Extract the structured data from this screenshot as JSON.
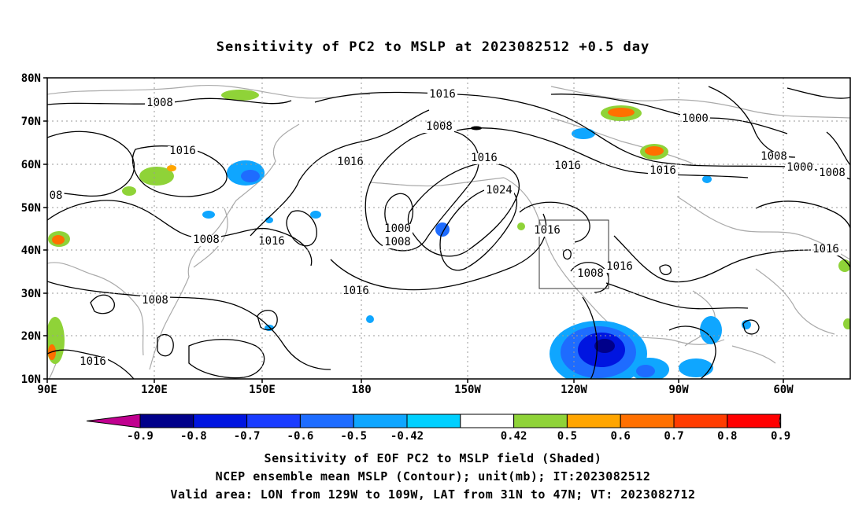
{
  "title": "Sensitivity of PC2 to MSLP at 2023082512 +0.5 day",
  "lat_labels": [
    "80N",
    "70N",
    "60N",
    "50N",
    "40N",
    "30N",
    "20N",
    "10N"
  ],
  "lon_labels": [
    "90E",
    "120E",
    "150E",
    "180",
    "150W",
    "120W",
    "90W",
    "60W"
  ],
  "contour_labels": [
    {
      "text": "1008"
    },
    {
      "text": "1016"
    },
    {
      "text": "08"
    },
    {
      "text": "1008"
    },
    {
      "text": "1016"
    },
    {
      "text": "1016"
    },
    {
      "text": "1008"
    },
    {
      "text": "1016"
    },
    {
      "text": "1000"
    },
    {
      "text": "1008"
    },
    {
      "text": "1016"
    },
    {
      "text": "1008"
    },
    {
      "text": "1016"
    },
    {
      "text": "1016"
    },
    {
      "text": "1024"
    },
    {
      "text": "1016"
    },
    {
      "text": "1008"
    },
    {
      "text": "1016"
    },
    {
      "text": "1000"
    },
    {
      "text": "1016"
    },
    {
      "text": "1008"
    },
    {
      "text": "1000"
    },
    {
      "text": "1008"
    },
    {
      "text": "1016"
    },
    {
      "text": "1016"
    }
  ],
  "colorbar": {
    "labels": [
      "-0.9",
      "-0.8",
      "-0.7",
      "-0.6",
      "-0.5",
      "-0.42",
      "0.42",
      "0.5",
      "0.6",
      "0.7",
      "0.8",
      "0.9"
    ],
    "colors": [
      "#00008a",
      "#0015e0",
      "#1a3cff",
      "#1e6cff",
      "#0fa6ff",
      "#00d0ff",
      "#ffffff",
      "#8fd338",
      "#ffa500",
      "#ff7000",
      "#ff3c00",
      "#ff0000"
    ],
    "low_end_color": "#c0008f",
    "high_end_color": "#ff9cc8"
  },
  "captions": {
    "line1": "Sensitivity of EOF PC2 to MSLP field (Shaded)",
    "line2": "NCEP ensemble mean MSLP (Contour); unit(mb); IT:2023082512",
    "line3": "Valid area: LON from 129W to 109W, LAT from 31N to 47N; VT: 2023082712"
  },
  "valid_area": {
    "lon_min": -129,
    "lon_max": -109,
    "lat_min": 31,
    "lat_max": 47
  }
}
